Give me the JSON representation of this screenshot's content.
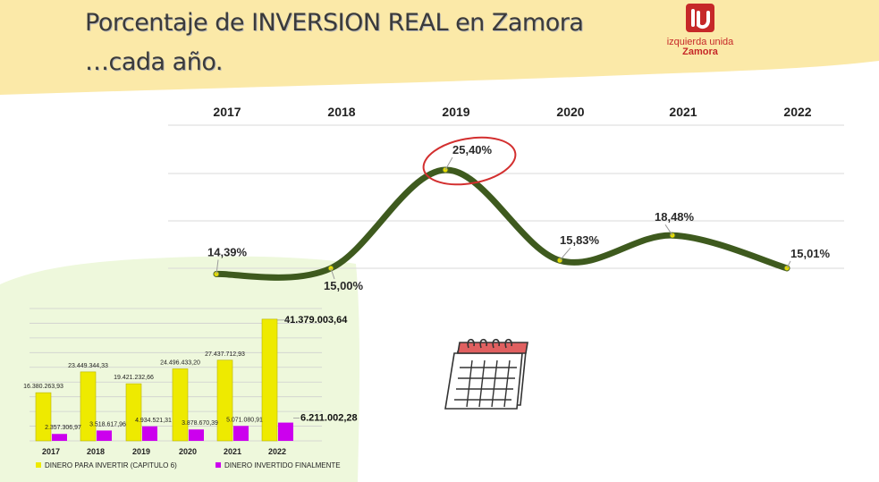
{
  "header": {
    "title_line1": "Porcentaje de INVERSION REAL en Zamora",
    "title_line2": "…cada año."
  },
  "logo": {
    "name": "izquierda unida",
    "city": "Zamora",
    "brand_color": "#c62828"
  },
  "colors": {
    "banner": "#fbe9a8",
    "inset_background": "#eef8dc",
    "line": "#3e5a1e",
    "marker": "#e8e000",
    "highlight_circle": "#d32f2f",
    "bar_invest": "#eeea00",
    "bar_spent": "#cc00ee"
  },
  "chart_data": [
    {
      "type": "line",
      "title": "",
      "categories": [
        "2017",
        "2018",
        "2019",
        "2020",
        "2021",
        "2022"
      ],
      "series": [
        {
          "values": [
            14.39,
            15.0,
            25.4,
            15.83,
            18.48,
            15.01
          ],
          "labels": [
            "14,39%",
            "15,00%",
            "25,40%",
            "15,83%",
            "18,48%",
            "15,01%"
          ]
        }
      ],
      "ylim": [
        10,
        30
      ],
      "grid": true,
      "highlight": "2019",
      "smooth": true
    },
    {
      "type": "bar",
      "title": "",
      "categories": [
        "2017",
        "2018",
        "2019",
        "2020",
        "2021",
        "2022"
      ],
      "series": [
        {
          "name": "DINERO PARA INVERTIR (CAPITULO 6)",
          "values": [
            16380263.93,
            23449344.33,
            19421232.66,
            24496433.2,
            27437712.93,
            41379003.64
          ],
          "labels": [
            "16.380.263,93",
            "23.449.344,33",
            "19.421.232,66",
            "24.496.433,20",
            "27.437.712,93",
            "41.379.003,64"
          ]
        },
        {
          "name": "DINERO INVERTIDO FINALMENTE",
          "values": [
            2357306.97,
            3518617.96,
            4934521.31,
            3878670.39,
            5071080.91,
            6211002.28
          ],
          "labels": [
            "2.357.306,97",
            "3.518.617,96",
            "4.934.521,31",
            "3.878.670,39",
            "5.071.080,91",
            "6.211.002,28"
          ]
        }
      ],
      "ylim": [
        0,
        45000000
      ],
      "grid": true,
      "legend": "bottom"
    }
  ],
  "decor": {
    "calendar_icon": "calendar-icon"
  }
}
